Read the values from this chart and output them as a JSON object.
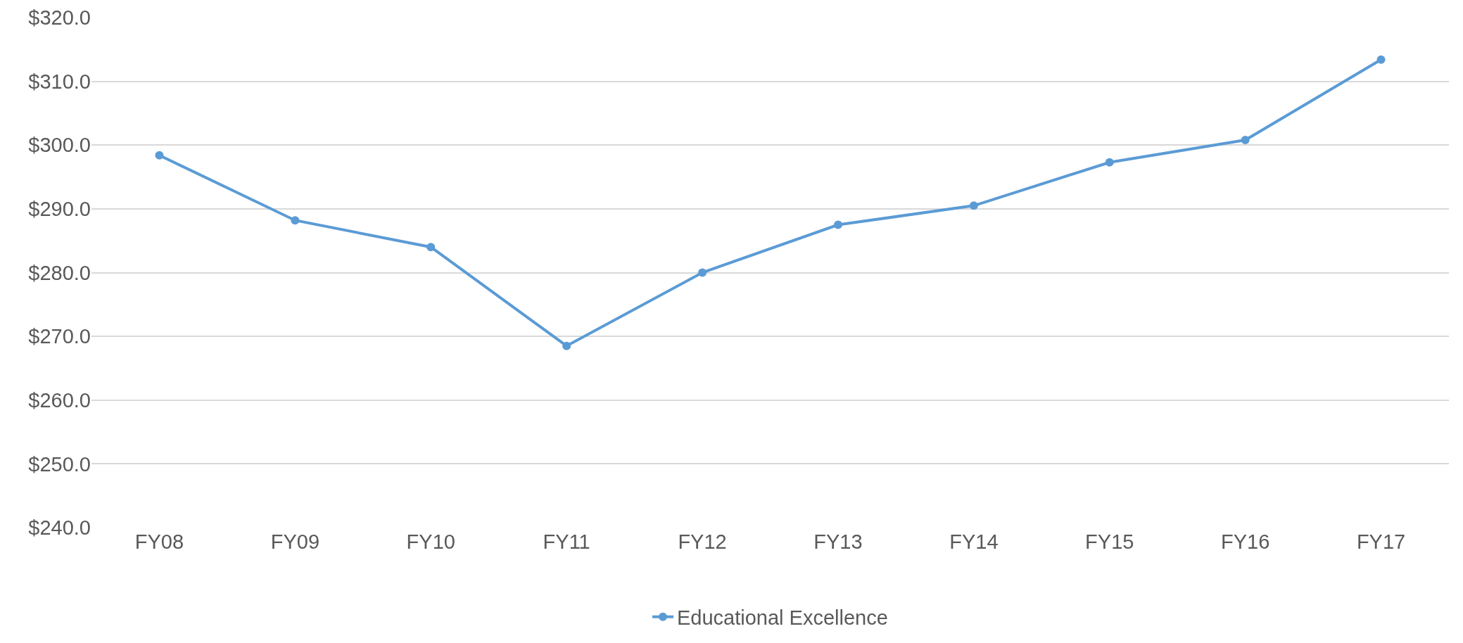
{
  "chart_data": {
    "type": "line",
    "categories": [
      "FY08",
      "FY09",
      "FY10",
      "FY11",
      "FY12",
      "FY13",
      "FY14",
      "FY15",
      "FY16",
      "FY17"
    ],
    "series": [
      {
        "name": "Educational Excellence",
        "color": "#5b9bd5",
        "values": [
          298.4,
          288.2,
          284.0,
          268.5,
          280.0,
          287.5,
          290.5,
          297.3,
          300.8,
          313.4
        ]
      }
    ],
    "ylim": [
      240,
      320
    ],
    "yticks": [
      {
        "value": 240,
        "label": "$240.0"
      },
      {
        "value": 250,
        "label": "$250.0"
      },
      {
        "value": 260,
        "label": "$260.0"
      },
      {
        "value": 270,
        "label": "$270.0"
      },
      {
        "value": 280,
        "label": "$280.0"
      },
      {
        "value": 290,
        "label": "$290.0"
      },
      {
        "value": 300,
        "label": "$300.0"
      },
      {
        "value": 310,
        "label": "$310.0"
      },
      {
        "value": 320,
        "label": "$320.0"
      }
    ],
    "grid": "y",
    "legend": "bottom",
    "marker": "circle",
    "line_style": "solid"
  }
}
